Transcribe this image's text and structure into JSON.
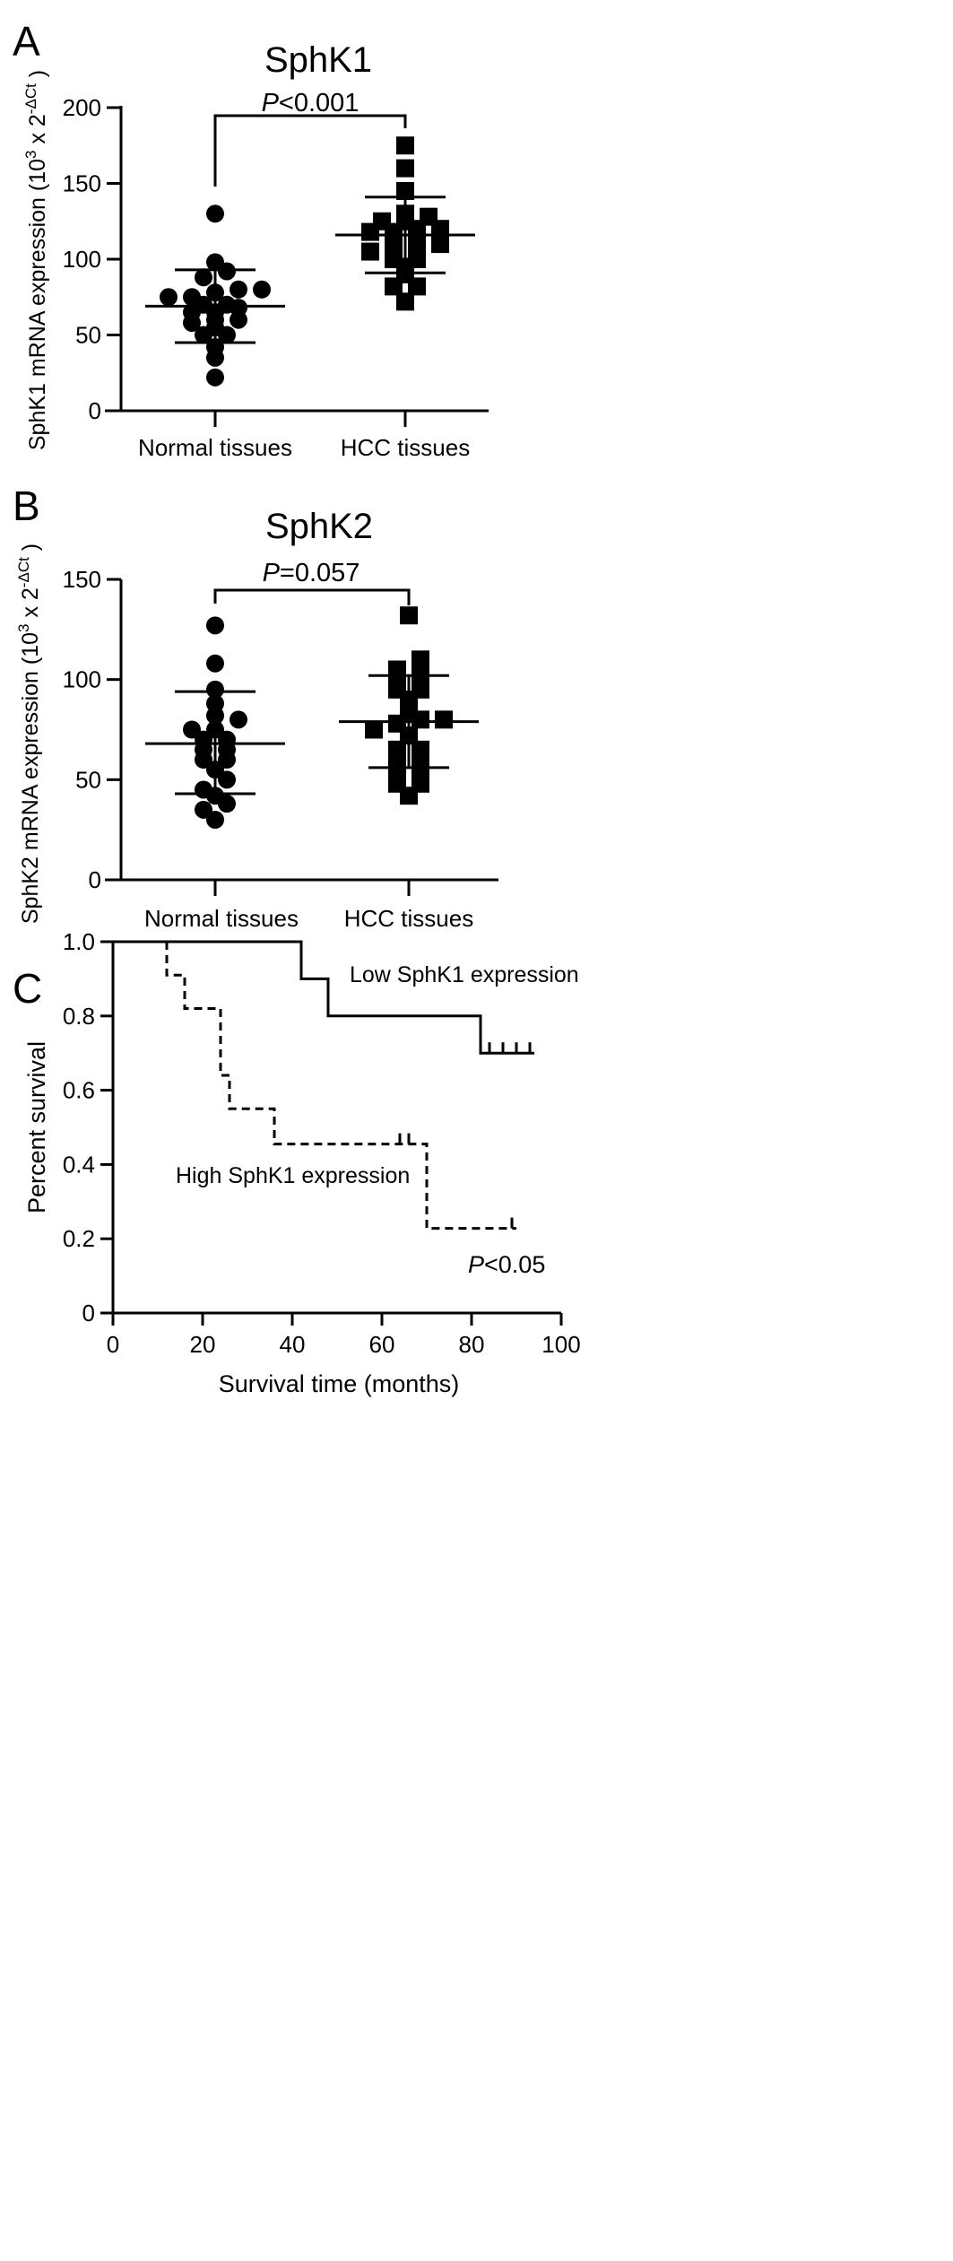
{
  "panels": [
    {
      "letter": "A"
    },
    {
      "letter": "B"
    },
    {
      "letter": "C"
    }
  ],
  "chart_data": [
    {
      "type": "scatter",
      "title": "SphK1",
      "ylabel": "SphK1 mRNA expression (10³ x 2⁻ΔCt)",
      "ylabel_parts": {
        "prefix": "SphK1 mRNA expression (10",
        "exp": "3",
        "mid": " x 2",
        "sup": "-ΔCt",
        "suffix": " )"
      },
      "ylim": [
        0,
        200
      ],
      "yticks": [
        0,
        50,
        100,
        150,
        200
      ],
      "categories": [
        "Normal tissues",
        "HCC tissues"
      ],
      "series": [
        {
          "marker": "circle",
          "category": "Normal tissues",
          "values": [
            22,
            35,
            42,
            50,
            50,
            55,
            58,
            60,
            60,
            65,
            65,
            68,
            70,
            70,
            75,
            75,
            78,
            80,
            80,
            88,
            92,
            98,
            130
          ],
          "mean": 69,
          "sd_low": 45,
          "sd_high": 93
        },
        {
          "marker": "square",
          "category": "HCC tissues",
          "values": [
            72,
            82,
            82,
            90,
            95,
            100,
            100,
            105,
            105,
            110,
            110,
            115,
            115,
            118,
            118,
            120,
            120,
            125,
            125,
            128,
            130,
            145,
            160,
            175
          ],
          "mean": 116,
          "sd_low": 91,
          "sd_high": 141
        }
      ],
      "annotation": {
        "italic": "P",
        "text": "<0.001"
      }
    },
    {
      "type": "scatter",
      "title": "SphK2",
      "ylabel": "SphK2 mRNA expression (10³ x 2⁻ΔCt)",
      "ylabel_parts": {
        "prefix": "SphK2 mRNA expression (10",
        "exp": "3",
        "mid": " x 2",
        "sup": "-ΔCt",
        "suffix": " )"
      },
      "ylim": [
        0,
        150
      ],
      "yticks": [
        0,
        50,
        100,
        150
      ],
      "categories": [
        "Normal tissues",
        "HCC tissues"
      ],
      "series": [
        {
          "marker": "circle",
          "category": "Normal tissues",
          "values": [
            30,
            35,
            38,
            42,
            45,
            50,
            55,
            60,
            60,
            65,
            65,
            70,
            70,
            75,
            75,
            80,
            82,
            88,
            95,
            108,
            127
          ],
          "mean": 68,
          "sd_low": 43,
          "sd_high": 94
        },
        {
          "marker": "square",
          "category": "HCC tissues",
          "values": [
            42,
            48,
            48,
            55,
            55,
            58,
            62,
            65,
            65,
            72,
            75,
            78,
            80,
            80,
            84,
            90,
            95,
            95,
            100,
            103,
            105,
            110,
            132
          ],
          "mean": 79,
          "sd_low": 56,
          "sd_high": 102
        }
      ],
      "annotation": {
        "italic": "P",
        "text": "=0.057"
      }
    },
    {
      "type": "line",
      "xlabel": "Survival time (months)",
      "ylabel": "Percent survival",
      "xlim": [
        0,
        100
      ],
      "ylim": [
        0,
        1.0
      ],
      "xticks": [
        0,
        20,
        40,
        60,
        80,
        100
      ],
      "yticks": [
        "0",
        "0.2",
        "0.4",
        "0.6",
        "0.8",
        "1.0"
      ],
      "series": [
        {
          "name": "Low SphK1 expression",
          "style": "solid",
          "steps": [
            [
              0,
              1.0
            ],
            [
              42,
              0.9
            ],
            [
              48,
              0.8
            ],
            [
              82,
              0.7
            ]
          ],
          "end": 94,
          "censored": [
            [
              84,
              0.7
            ],
            [
              87,
              0.7
            ],
            [
              90,
              0.7
            ],
            [
              93,
              0.7
            ]
          ]
        },
        {
          "name": "High SphK1 expression",
          "style": "dashed",
          "steps": [
            [
              0,
              1.0
            ],
            [
              12,
              0.91
            ],
            [
              16,
              0.82
            ],
            [
              24,
              0.64
            ],
            [
              26,
              0.55
            ],
            [
              36,
              0.455
            ],
            [
              70,
              0.228
            ]
          ],
          "end": 90,
          "censored": [
            [
              64,
              0.455
            ],
            [
              66,
              0.455
            ],
            [
              89,
              0.228
            ]
          ]
        }
      ],
      "annotation": {
        "italic": "P",
        "text": "<0.05"
      }
    }
  ]
}
